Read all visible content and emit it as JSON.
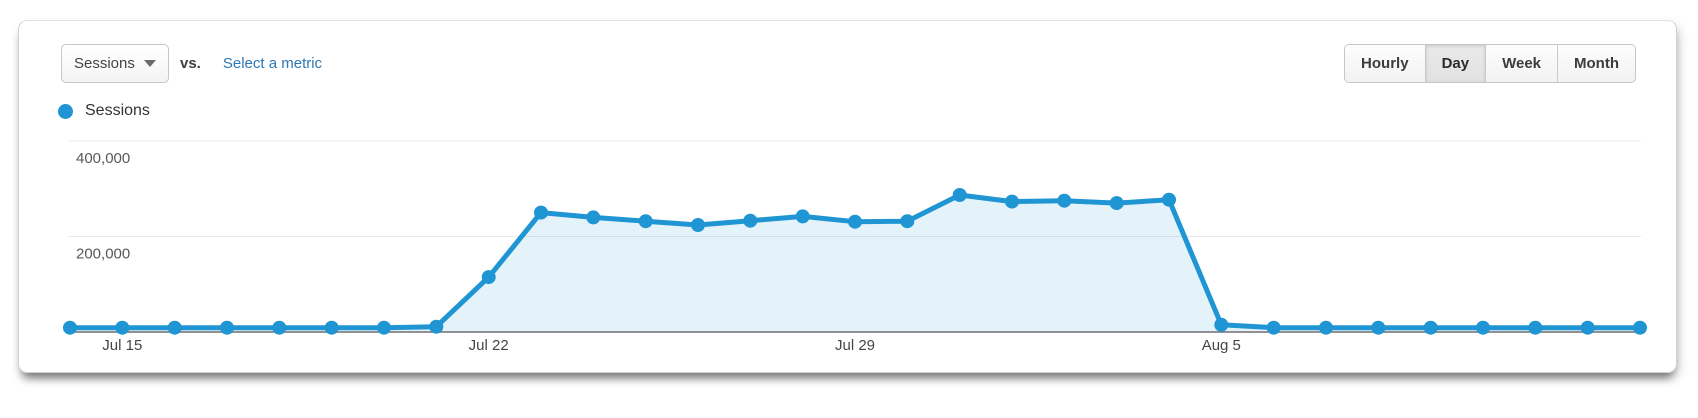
{
  "header": {
    "metric_selector": {
      "label": "Sessions"
    },
    "vs_label": "vs.",
    "select_metric_label": "Select a metric",
    "granularity": {
      "options": [
        "Hourly",
        "Day",
        "Week",
        "Month"
      ],
      "active": "Day"
    }
  },
  "legend": {
    "label": "Sessions",
    "color": "#2095d3"
  },
  "colors": {
    "line": "#2095d3",
    "area_fill": "rgba(32,149,211,0.12)",
    "link": "#2e78b5"
  },
  "chart_data": {
    "type": "area",
    "title": "",
    "xlabel": "",
    "ylabel": "",
    "grid": "horizontal",
    "legend_position": "top-left",
    "ylim": [
      0,
      400000
    ],
    "categories": [
      "Jul 14",
      "Jul 15",
      "Jul 16",
      "Jul 17",
      "Jul 18",
      "Jul 19",
      "Jul 20",
      "Jul 21",
      "Jul 22",
      "Jul 23",
      "Jul 24",
      "Jul 25",
      "Jul 26",
      "Jul 27",
      "Jul 28",
      "Jul 29",
      "Jul 30",
      "Jul 31",
      "Aug 1",
      "Aug 2",
      "Aug 3",
      "Aug 4",
      "Aug 5",
      "Aug 6",
      "Aug 7",
      "Aug 8",
      "Aug 9",
      "Aug 10",
      "Aug 11",
      "Aug 12",
      "Aug 13"
    ],
    "series": [
      {
        "name": "Sessions",
        "values": [
          9000,
          9000,
          9000,
          9000,
          9000,
          9000,
          9000,
          11000,
          115000,
          250000,
          240000,
          232000,
          224000,
          233000,
          242000,
          231000,
          232000,
          287000,
          273000,
          275000,
          270000,
          277000,
          15000,
          9000,
          9000,
          9000,
          9000,
          9000,
          9000,
          9000,
          9000
        ]
      }
    ],
    "x_tick_labels": [
      "Jul 15",
      "Jul 22",
      "Jul 29",
      "Aug 5"
    ],
    "y_ticks": [
      {
        "value": 200000,
        "label": "200,000"
      },
      {
        "value": 400000,
        "label": "400,000"
      }
    ]
  }
}
